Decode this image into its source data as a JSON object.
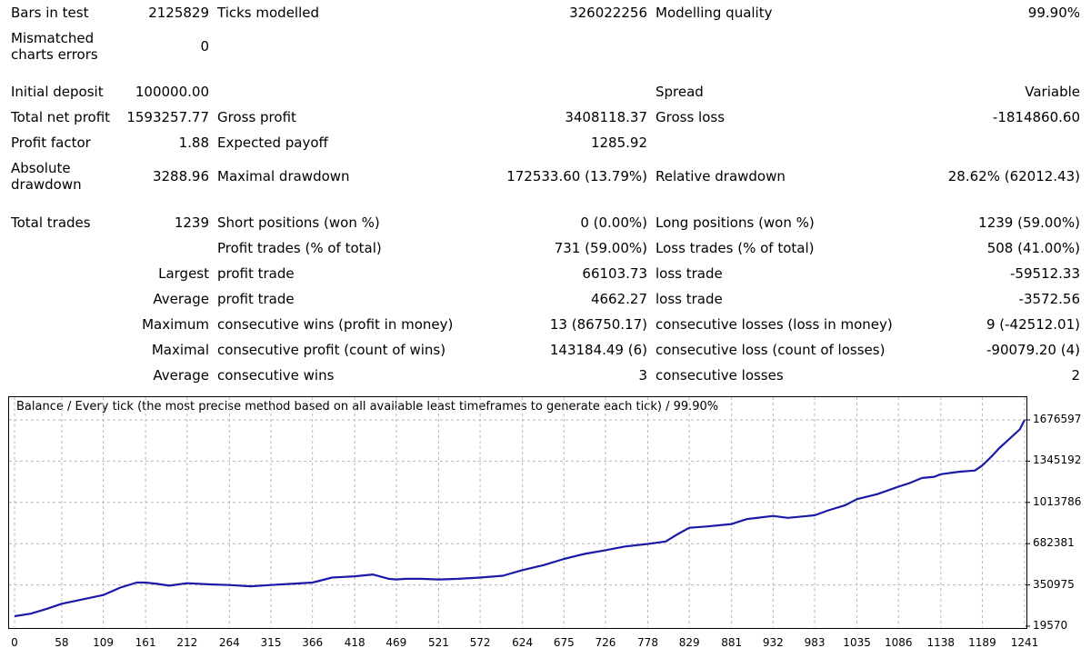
{
  "report": {
    "row_bars": {
      "c1": "Bars in test",
      "c2": "2125829",
      "c3": "Ticks modelled",
      "c4": "326022256",
      "c5": "Modelling quality",
      "c6": "99.90%"
    },
    "row_mismatch": {
      "c1": "Mismatched charts errors",
      "c2": "0"
    },
    "row_deposit": {
      "c1": "Initial deposit",
      "c2": "100000.00",
      "c5": "Spread",
      "c6": "Variable"
    },
    "row_netprofit": {
      "c1": "Total net profit",
      "c2": "1593257.77",
      "c3": "Gross profit",
      "c4": "3408118.37",
      "c5": "Gross loss",
      "c6": "-1814860.60"
    },
    "row_pf": {
      "c1": "Profit factor",
      "c2": "1.88",
      "c3": "Expected payoff",
      "c4": "1285.92"
    },
    "row_dd": {
      "c1": "Absolute drawdown",
      "c2": "3288.96",
      "c3": "Maximal drawdown",
      "c4": "172533.60 (13.79%)",
      "c5": "Relative drawdown",
      "c6": "28.62% (62012.43)"
    },
    "row_trades": {
      "c1": "Total trades",
      "c2": "1239",
      "c3": "Short positions (won %)",
      "c4": "0 (0.00%)",
      "c5": "Long positions (won %)",
      "c6": "1239 (59.00%)"
    },
    "row_profittrades": {
      "c3": "Profit trades (% of total)",
      "c4": "731 (59.00%)",
      "c5": "Loss trades (% of total)",
      "c6": "508 (41.00%)"
    },
    "row_largest": {
      "c1": "Largest",
      "c3": "profit trade",
      "c4": "66103.73",
      "c5": "loss trade",
      "c6": "-59512.33"
    },
    "row_average": {
      "c1": "Average",
      "c3": "profit trade",
      "c4": "4662.27",
      "c5": "loss trade",
      "c6": "-3572.56"
    },
    "row_maximum": {
      "c1": "Maximum",
      "c3": "consecutive wins (profit in money)",
      "c4": "13 (86750.17)",
      "c5": "consecutive losses (loss in money)",
      "c6": "9 (-42512.01)"
    },
    "row_maximal": {
      "c1": "Maximal",
      "c3": "consecutive profit (count of wins)",
      "c4": "143184.49 (6)",
      "c5": "consecutive loss (count of losses)",
      "c6": "-90079.20 (4)"
    },
    "row_avgcons": {
      "c1": "Average",
      "c3": "consecutive wins",
      "c4": "3",
      "c5": "consecutive losses",
      "c6": "2"
    }
  },
  "chart_data": {
    "type": "line",
    "title": "Balance / Every tick (the most precise method based on all available least timeframes to generate each tick) / 99.90%",
    "line_color": "#1a1aa6",
    "grid": true,
    "x_ticks": [
      "0",
      "58",
      "109",
      "161",
      "212",
      "264",
      "315",
      "366",
      "418",
      "469",
      "521",
      "572",
      "624",
      "675",
      "726",
      "778",
      "829",
      "881",
      "932",
      "983",
      "1035",
      "1086",
      "1138",
      "1189",
      "1241"
    ],
    "y_ticks": [
      "1676597",
      "1345192",
      "1013786",
      "682381",
      "350975",
      "19570"
    ],
    "xlim": [
      0,
      1241
    ],
    "ylim": [
      19570,
      1676597
    ],
    "x": [
      0,
      20,
      40,
      58,
      80,
      109,
      130,
      150,
      161,
      175,
      190,
      212,
      240,
      264,
      290,
      315,
      340,
      366,
      390,
      418,
      440,
      460,
      469,
      480,
      500,
      521,
      545,
      572,
      600,
      624,
      650,
      675,
      700,
      726,
      750,
      778,
      800,
      815,
      829,
      850,
      881,
      900,
      932,
      950,
      983,
      1000,
      1020,
      1035,
      1060,
      1086,
      1100,
      1115,
      1130,
      1138,
      1160,
      1180,
      1189,
      1200,
      1210,
      1220,
      1230,
      1235,
      1241
    ],
    "y": [
      100000,
      120000,
      160000,
      200000,
      230000,
      270000,
      330000,
      370000,
      370000,
      360000,
      345000,
      365000,
      355000,
      350000,
      340000,
      350000,
      360000,
      370000,
      410000,
      420000,
      435000,
      400000,
      395000,
      400000,
      400000,
      395000,
      400000,
      410000,
      425000,
      470000,
      510000,
      560000,
      600000,
      630000,
      660000,
      680000,
      700000,
      760000,
      810000,
      820000,
      840000,
      880000,
      905000,
      890000,
      910000,
      950000,
      990000,
      1040000,
      1080000,
      1140000,
      1170000,
      1210000,
      1220000,
      1240000,
      1260000,
      1270000,
      1310000,
      1380000,
      1450000,
      1510000,
      1570000,
      1600000,
      1676597
    ]
  }
}
